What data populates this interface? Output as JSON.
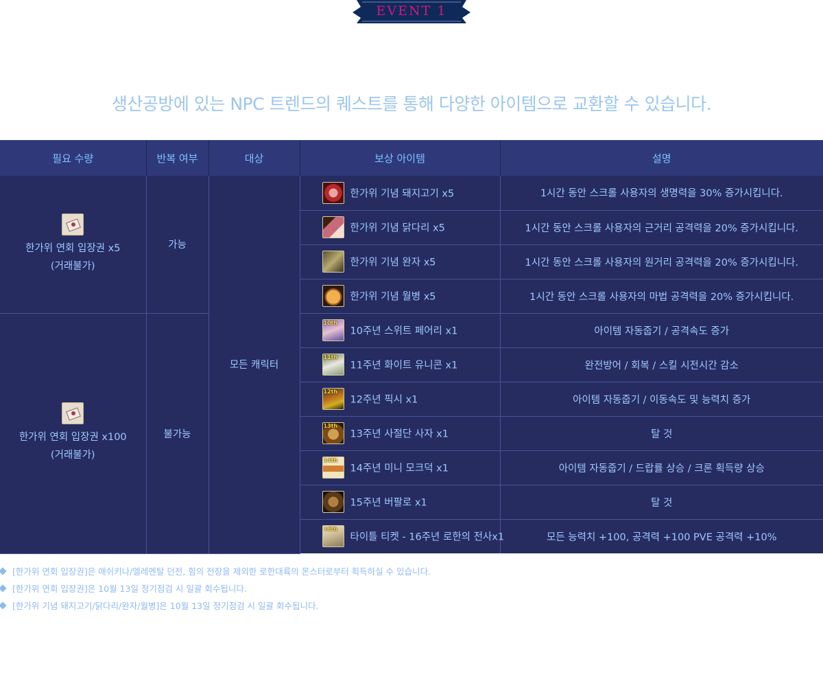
{
  "event_title": "EVENT 1",
  "subtitle": "생산공방에 있는 NPC 트렌드의 퀘스트를 통해 다양한 아이템으로 교환할 수 있습니다.",
  "colors": {
    "header_bg": "#2f3979",
    "body_bg": "#262c60",
    "text": "#9fc8ff",
    "ribbon": "#0f2a5a",
    "ribbon_text": "#d1187d"
  },
  "table": {
    "headers": [
      "필요 수량",
      "반복 여부",
      "대상",
      "보상 아이템",
      "설명"
    ],
    "groups": [
      {
        "ticket_icon": "ticket-icon",
        "ticket_label": "한가위 연회 입장권 x5",
        "ticket_note": "(거래불가)",
        "repeat": "가능"
      },
      {
        "ticket_icon": "ticket-icon",
        "ticket_label": "한가위 연회 입장권 x100",
        "ticket_note": "(거래불가)",
        "repeat": "불가능"
      }
    ],
    "target": "모든  캐릭터",
    "rows": [
      {
        "icon": "pork-icon",
        "reward": "한가위 기념 돼지고기 x5",
        "desc": "1시간 동안 스크롤 사용자의 생명력을 30% 증가시킵니다."
      },
      {
        "icon": "drumstick-icon",
        "reward": "한가위 기념 닭다리  x5",
        "desc": "1시간 동안 스크롤 사용자의 근거리 공격력을 20% 증가시킵니다."
      },
      {
        "icon": "skewer-icon",
        "reward": "한가위 기념 완자 x5",
        "desc": "1시간 동안 스크롤 사용자의 원거리 공격력을 20% 증가시킵니다."
      },
      {
        "icon": "mooncake-icon",
        "reward": "한가위 기념 월병 x5",
        "desc": "1시간 동안 스크롤 사용자의 마법 공격력을 20% 증가시킵니다."
      },
      {
        "icon": "fairy-icon",
        "badge": "10th",
        "reward": "10주년 스위트 페어리 x1",
        "desc": "아이템 자동줍기 / 공격속도 증가"
      },
      {
        "icon": "unicorn-icon",
        "badge": "11th",
        "reward": "11주년 화이트 유니콘 x1",
        "desc": "완전방어 / 회복 / 스킬 시전시간 감소"
      },
      {
        "icon": "pixie-icon",
        "badge": "12th",
        "reward": "12주년 픽시 x1",
        "desc": "아이템 자동줍기 / 이동속도 및 능력치 증가"
      },
      {
        "icon": "lion-icon",
        "badge": "13th",
        "reward": "13주년 사절단 사자 x1",
        "desc": "탈 것"
      },
      {
        "icon": "mocaduck-icon",
        "badge": "14th",
        "reward": "14주년 미니 모크덕 x1",
        "desc": "아이템 자동줍기 / 드랍률 상승 / 크론 획득량 상승"
      },
      {
        "icon": "buffalo-icon",
        "reward": "15주년 버팔로 x1",
        "desc": "탈 것"
      },
      {
        "icon": "title-ticket-icon",
        "badge": "16th",
        "reward": "타이틀 티켓 - 16주년 로한의 전사x1",
        "desc": "모든 능력치 +100, 공격력 +100 PVE 공격력 +10%"
      }
    ]
  },
  "notes": [
    "[한가위 연회 입장권]은 애쉬키나/엘레멘탈 던전, 힘의 전장을 제외한 로한대륙의 몬스터로부터 획득하실 수 있습니다.",
    "[한가위 연회 입장권]은 10월 13일 정기점검 시 일괄 회수됩니다.",
    "[한가위 기념 돼지고기/닭다리/완자/월병]은 10월 13일 정기점검 시 일괄 회수됩니다."
  ]
}
